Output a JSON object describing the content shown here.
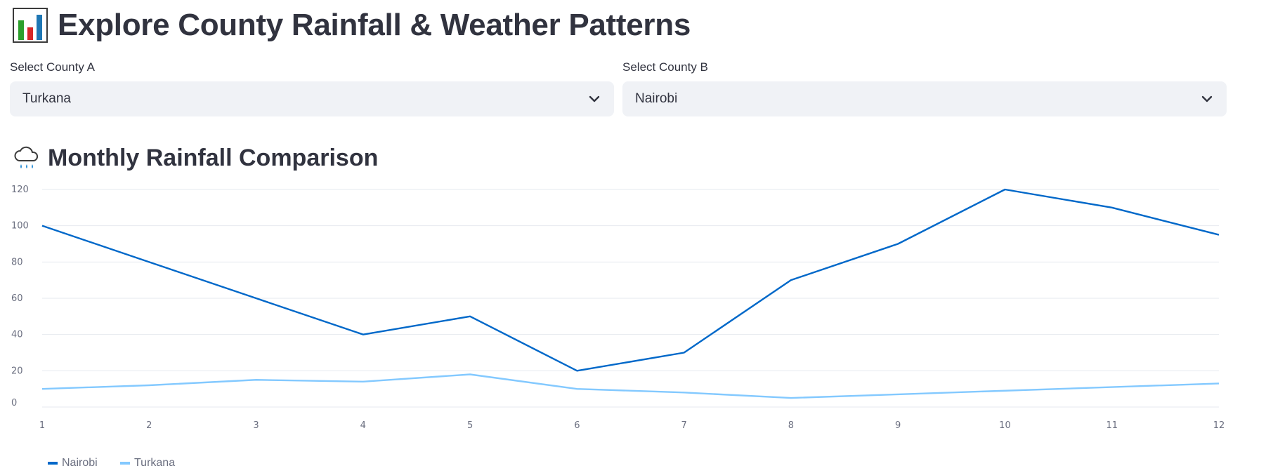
{
  "header": {
    "title": "Explore County Rainfall & Weather Patterns",
    "icon": "bar-chart-icon"
  },
  "selects": {
    "county_a": {
      "label": "Select County A",
      "value": "Turkana",
      "icon": "chevron-down-icon"
    },
    "county_b": {
      "label": "Select County B",
      "value": "Nairobi",
      "icon": "chevron-down-icon"
    }
  },
  "section": {
    "title": "Monthly Rainfall Comparison",
    "icon": "rain-cloud-icon"
  },
  "chart_data": {
    "type": "line",
    "x": [
      1,
      2,
      3,
      4,
      5,
      6,
      7,
      8,
      9,
      10,
      11,
      12
    ],
    "ylim": [
      0,
      120
    ],
    "yticks": [
      0,
      20,
      40,
      60,
      80,
      100,
      120
    ],
    "grid": true,
    "legend_position": "bottom-left",
    "series": [
      {
        "name": "Nairobi",
        "color": "#0068c9",
        "values": [
          100,
          80,
          60,
          40,
          50,
          20,
          30,
          70,
          90,
          120,
          110,
          95
        ]
      },
      {
        "name": "Turkana",
        "color": "#83c9ff",
        "values": [
          10,
          12,
          15,
          14,
          18,
          10,
          8,
          5,
          7,
          9,
          11,
          13
        ]
      }
    ]
  }
}
